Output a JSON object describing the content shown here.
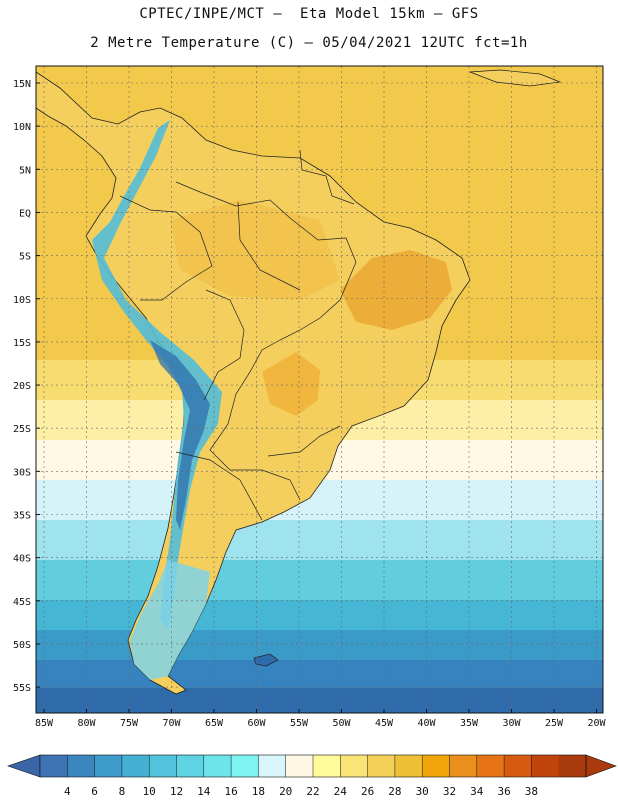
{
  "header": {
    "line1": "CPTEC/INPE/MCT –  Eta Model 15km – GFS",
    "line2": "2 Metre Temperature (C) – 05/04/2021 12UTC fct=1h"
  },
  "map": {
    "lat_labels": [
      "15N",
      "10N",
      "5N",
      "EQ",
      "5S",
      "10S",
      "15S",
      "20S",
      "25S",
      "30S",
      "35S",
      "40S",
      "45S",
      "50S",
      "55S"
    ],
    "lon_labels": [
      "85W",
      "80W",
      "75W",
      "70W",
      "65W",
      "60W",
      "55W",
      "50W",
      "45W",
      "40W",
      "35W",
      "30W",
      "25W",
      "20W"
    ],
    "ocean_bands": [
      {
        "temp": 26,
        "color": "#f2c94a"
      },
      {
        "temp": 24,
        "color": "#f7dd70"
      },
      {
        "temp": 22,
        "color": "#fdf0a6"
      },
      {
        "temp": 20,
        "color": "#fef8e4"
      },
      {
        "temp": 18,
        "color": "#d6f3fa"
      },
      {
        "temp": 16,
        "color": "#9fe3ee"
      },
      {
        "temp": 14,
        "color": "#63cde0"
      },
      {
        "temp": 12,
        "color": "#45b6d4"
      },
      {
        "temp": 10,
        "color": "#3a9bc8"
      },
      {
        "temp": 8,
        "color": "#3683bf"
      },
      {
        "temp": 6,
        "color": "#2f6aab"
      }
    ]
  },
  "colorbar": {
    "values": [
      "4",
      "6",
      "8",
      "10",
      "12",
      "14",
      "16",
      "18",
      "20",
      "22",
      "24",
      "26",
      "28",
      "30",
      "32",
      "34",
      "36",
      "38"
    ],
    "colors": [
      "#3e74b4",
      "#3c86c0",
      "#3f9bc9",
      "#46b0d4",
      "#52c3dc",
      "#5ed3e3",
      "#6de4ea",
      "#7ef4f2",
      "#d8f6fb",
      "#fff6e3",
      "#fffa9a",
      "#fae476",
      "#f5d059",
      "#eec036",
      "#f0a60a",
      "#eb8f1c",
      "#e67417",
      "#d65a10",
      "#c0440c",
      "#a83a0e"
    ],
    "left_arrow_color": "#3a65a6",
    "right_arrow_color": "#a83a0e"
  }
}
